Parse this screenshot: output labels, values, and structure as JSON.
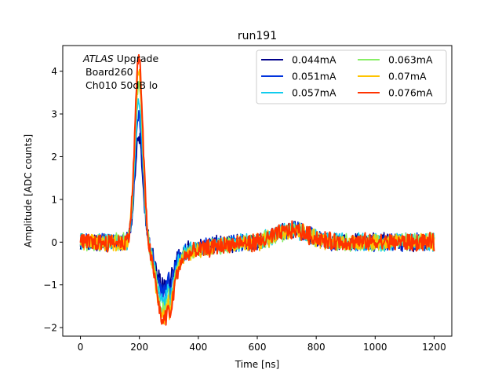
{
  "chart_data": {
    "type": "line",
    "title": "run191",
    "xlabel": "Time [ns]",
    "ylabel": "Amplitude [ADC counts]",
    "xlim": [
      -60,
      1260
    ],
    "ylim": [
      -2.2,
      4.6
    ],
    "xticks": [
      0,
      200,
      400,
      600,
      800,
      1000,
      1200
    ],
    "yticks": [
      -2,
      -1,
      0,
      1,
      2,
      3,
      4
    ],
    "annotation": {
      "italic": "ATLAS",
      "rest": " Upgrade",
      "line2": "Board260",
      "line3": "Ch010 50dB lo"
    },
    "legend_placement": "top-right",
    "legend_columns": 2,
    "noise_amplitude": 0.18,
    "series": [
      {
        "name": "0.044mA",
        "color": "#00008b",
        "peak": 2.5,
        "trough": -1.0
      },
      {
        "name": "0.051mA",
        "color": "#0033dd",
        "peak": 2.9,
        "trough": -1.2
      },
      {
        "name": "0.057mA",
        "color": "#11ccee",
        "peak": 3.3,
        "trough": -1.4
      },
      {
        "name": "0.063mA",
        "color": "#88ee66",
        "peak": 3.7,
        "trough": -1.6
      },
      {
        "name": "0.07mA",
        "color": "#ffc400",
        "peak": 4.0,
        "trough": -1.75
      },
      {
        "name": "0.076mA",
        "color": "#ff3300",
        "peak": 4.3,
        "trough": -1.85
      }
    ]
  }
}
